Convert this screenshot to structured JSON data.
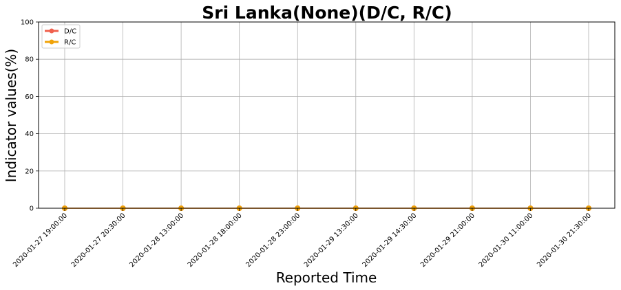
{
  "chart_data": {
    "type": "line",
    "title": "Sri Lanka(None)(D/C, R/C)",
    "xlabel": "Reported Time",
    "ylabel": "Indicator values(%)",
    "ylim": [
      0,
      100
    ],
    "yticks": [
      0,
      20,
      40,
      60,
      80,
      100
    ],
    "grid": true,
    "legend_position": "top-left",
    "x": [
      "2020-01-27 19:00:00",
      "2020-01-27 20:30:00",
      "2020-01-28 13:00:00",
      "2020-01-28 18:00:00",
      "2020-01-28 23:00:00",
      "2020-01-29 13:30:00",
      "2020-01-29 14:30:00",
      "2020-01-29 21:00:00",
      "2020-01-30 11:00:00",
      "2020-01-30 21:30:00"
    ],
    "series": [
      {
        "name": "D/C",
        "color": "#f0604d",
        "values": [
          0,
          0,
          0,
          0,
          0,
          0,
          0,
          0,
          0,
          0
        ]
      },
      {
        "name": "R/C",
        "color": "#f0a30a",
        "values": [
          0,
          0,
          0,
          0,
          0,
          0,
          0,
          0,
          0,
          0
        ]
      }
    ]
  }
}
